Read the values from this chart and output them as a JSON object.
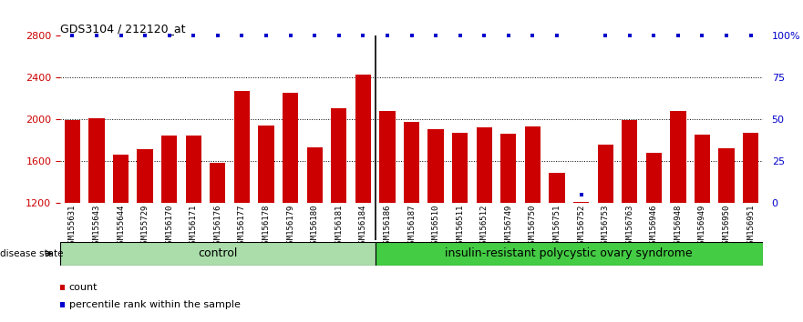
{
  "title": "GDS3104 / 212120_at",
  "samples": [
    "GSM155631",
    "GSM155643",
    "GSM155644",
    "GSM155729",
    "GSM156170",
    "GSM156171",
    "GSM156176",
    "GSM156177",
    "GSM156178",
    "GSM156179",
    "GSM156180",
    "GSM156181",
    "GSM156184",
    "GSM156186",
    "GSM156187",
    "GSM156510",
    "GSM156511",
    "GSM156512",
    "GSM156749",
    "GSM156750",
    "GSM156751",
    "GSM156752",
    "GSM156753",
    "GSM156763",
    "GSM156946",
    "GSM156948",
    "GSM156949",
    "GSM156950",
    "GSM156951"
  ],
  "counts": [
    1990,
    2010,
    1660,
    1710,
    1840,
    1840,
    1580,
    2270,
    1940,
    2250,
    1730,
    2100,
    2430,
    2080,
    1970,
    1900,
    1870,
    1920,
    1860,
    1930,
    1490,
    1210,
    1760,
    1990,
    1680,
    2080,
    1850,
    1720,
    1870
  ],
  "percentile_ranks": [
    100,
    100,
    100,
    100,
    100,
    100,
    100,
    100,
    100,
    100,
    100,
    100,
    100,
    100,
    100,
    100,
    100,
    100,
    100,
    100,
    100,
    5,
    100,
    100,
    100,
    100,
    100,
    100,
    100
  ],
  "control_count": 13,
  "disease_label": "insulin-resistant polycystic ovary syndrome",
  "control_label": "control",
  "disease_state_label": "disease state",
  "ylim_left": [
    1200,
    2800
  ],
  "ylim_right": [
    0,
    100
  ],
  "yticks_left": [
    1200,
    1600,
    2000,
    2400,
    2800
  ],
  "yticks_right": [
    0,
    25,
    50,
    75,
    100
  ],
  "bar_color": "#cc0000",
  "percentile_color": "#0000cc",
  "tick_bg_color": "#c8c8c8",
  "control_bg": "#aaddaa",
  "disease_bg": "#44cc44",
  "legend_count_label": "count",
  "legend_percentile_label": "percentile rank within the sample"
}
